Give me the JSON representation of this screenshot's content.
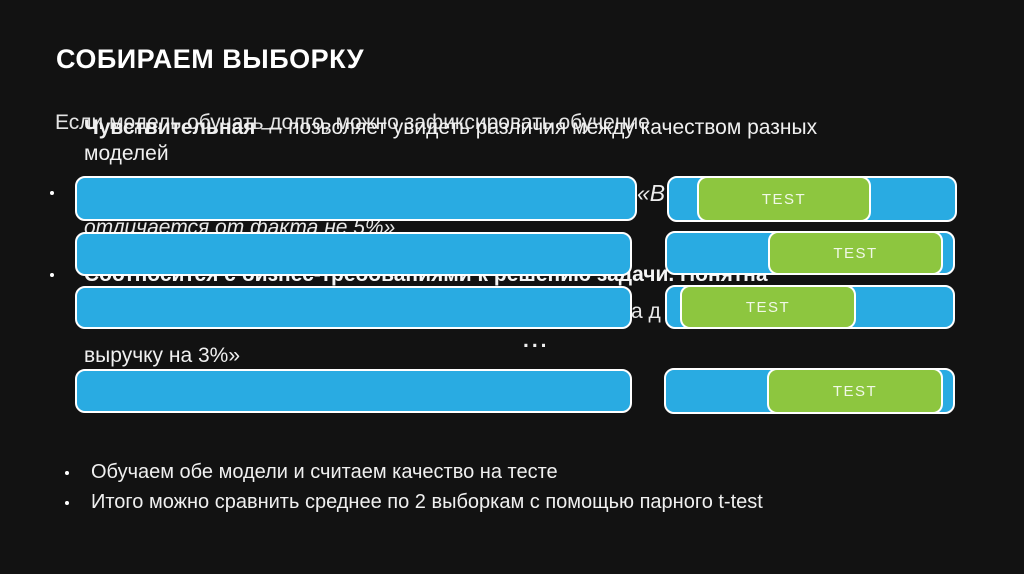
{
  "slide": {
    "title": "СОБИРАЕМ ВЫБОРКУ",
    "colors": {
      "background": "#121212",
      "bar_blue": "#29ABE2",
      "bar_green": "#8DC63F",
      "border": "#FFFFFF",
      "text": "#F0F0F0"
    },
    "overlap_layer": {
      "fixed_training": "Если модель обучать долго, можно зафиксировать обучение",
      "quote_open": "«В",
      "differs_from_fact": "отличается от факта не 5%»",
      "fragment": "а д",
      "revenue_tail": "выручку на 3%»"
    },
    "metric_layer": {
      "sensitive_term": "Чувствительная",
      "sensitive_rest": " — позволяет увидеть различия между качеством разных",
      "sensitive_wrap": "моделей",
      "business": "Соотносится с бизнес-требованиями к решению задачи. Понятна"
    },
    "diagram": {
      "test_label": "TEST",
      "ellipsis": "..."
    },
    "bullets": [
      {
        "label": "Обучаем обе модели и считаем качество на тесте"
      },
      {
        "label": "Итого можно сравнить среднее по 2 выборкам с помощью парного t-test"
      }
    ]
  }
}
